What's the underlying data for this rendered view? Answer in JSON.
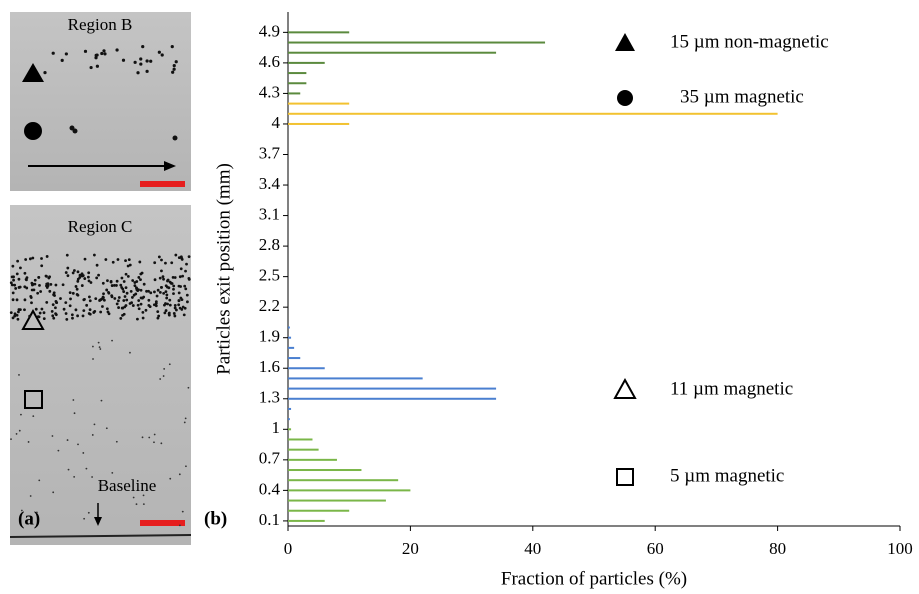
{
  "panel_a": {
    "label": "(a)",
    "region_top": "Region B",
    "region_bottom": "Region C",
    "baseline": "Baseline"
  },
  "chart_data": {
    "type": "hbar",
    "panel_label": "(b)",
    "x_label": "Fraction of particles (%)",
    "y_label": "Particles exit position (mm)",
    "xlim": [
      0,
      100
    ],
    "xticks": [
      0,
      20,
      40,
      60,
      80,
      100
    ],
    "ylim": [
      0.05,
      5.1
    ],
    "yticks": [
      0.1,
      0.4,
      0.7,
      1,
      1.3,
      1.6,
      1.9,
      2.2,
      2.5,
      2.8,
      3.1,
      3.4,
      3.7,
      4,
      4.3,
      4.6,
      4.9
    ],
    "series": [
      {
        "name": "15 µm non-magnetic",
        "marker": "filled-triangle",
        "color": "#5b8a3e",
        "positions": [
          4.3,
          4.4,
          4.5,
          4.6,
          4.7,
          4.8,
          4.9
        ],
        "values": [
          2,
          3,
          3,
          6,
          34,
          42,
          10
        ]
      },
      {
        "name": "35 µm magnetic",
        "marker": "filled-circle",
        "color": "#f2c230",
        "positions": [
          4.0,
          4.1,
          4.2
        ],
        "values": [
          10,
          80,
          10
        ]
      },
      {
        "name": "11 µm magnetic",
        "marker": "open-triangle",
        "color": "#4a7fd0",
        "positions": [
          1.1,
          1.2,
          1.3,
          1.4,
          1.5,
          1.6,
          1.7,
          1.8,
          1.9,
          2.0
        ],
        "values": [
          0.3,
          0.5,
          34,
          34,
          22,
          6,
          2,
          1,
          0.5,
          0.3
        ]
      },
      {
        "name": "5 µm magnetic",
        "marker": "open-square",
        "color": "#7ab648",
        "positions": [
          0.1,
          0.2,
          0.3,
          0.4,
          0.5,
          0.6,
          0.7,
          0.8,
          0.9,
          1.0
        ],
        "values": [
          6,
          10,
          16,
          20,
          18,
          12,
          8,
          5,
          4,
          0.5
        ]
      }
    ]
  }
}
